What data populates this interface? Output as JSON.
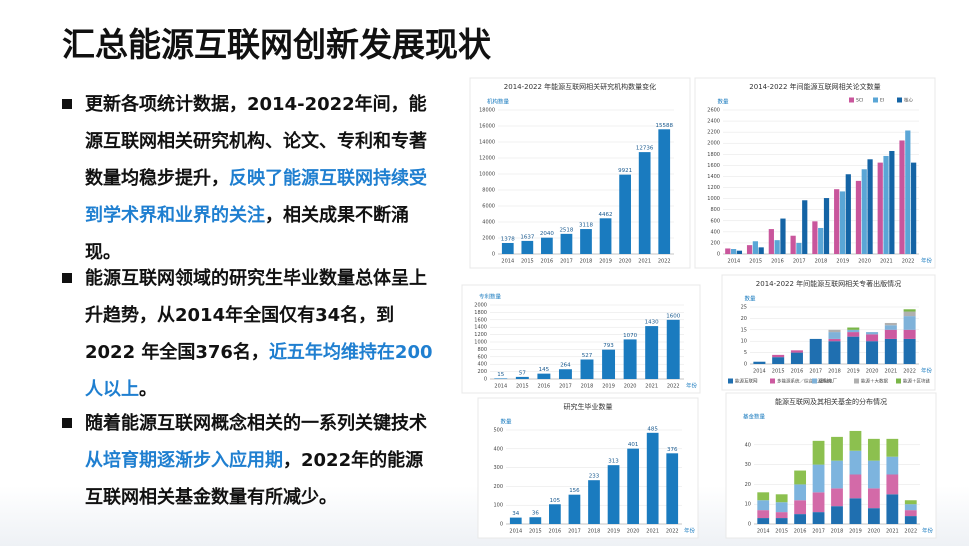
{
  "slide": {
    "title": "汇总能源互联网创新发展现状",
    "bullets": [
      {
        "before": "更新各项统计数据，2014-2022年间，能源互联网相关研究机构、论文、专利和专著数量均稳步提升，",
        "highlight": "反映了能源互联网持续受到学术界和业界的关注",
        "after": "，相关成果不断涌现。"
      },
      {
        "before": "能源互联网领域的研究生毕业数量总体呈上升趋势，从2014年全国仅有34名，到2022 年全国376名，",
        "highlight": "近五年均维持在200人以上",
        "after": "。"
      },
      {
        "before": "随着能源互联网概念相关的一系列关键技术",
        "highlight": "从培育期逐渐步入应用期",
        "after": "，2022年的能源互联网相关基金数量有所减少。"
      }
    ]
  },
  "chart_data": [
    {
      "type": "bar",
      "title": "2014-2022 年能源互联网相关研究机构数量变化",
      "ylabel": "机构数量",
      "categories": [
        "2014",
        "2015",
        "2016",
        "2017",
        "2018",
        "2019",
        "2020",
        "2021",
        "2022"
      ],
      "values": [
        1378,
        1637,
        2040,
        2518,
        3118,
        4462,
        9921,
        12736,
        15588
      ],
      "color": "#1a7bbf",
      "ylim": [
        0,
        18000
      ],
      "yticks": [
        0,
        2000,
        4000,
        6000,
        8000,
        10000,
        12000,
        14000,
        16000,
        18000
      ],
      "grid": true
    },
    {
      "type": "bar",
      "title": "2014-2022 年间能源互联网相关论文数量",
      "ylabel": "数量",
      "xlabel": "年份",
      "categories": [
        "2014",
        "2015",
        "2016",
        "2017",
        "2018",
        "2019",
        "2020",
        "2021",
        "2022"
      ],
      "legend": "top-right",
      "series": [
        {
          "name": "SCI",
          "color": "#c9569c",
          "values": [
            100,
            160,
            450,
            330,
            590,
            1170,
            1320,
            1650,
            2050
          ]
        },
        {
          "name": "EI",
          "color": "#5aa6d6",
          "values": [
            90,
            230,
            250,
            200,
            470,
            1130,
            1530,
            1770,
            2230
          ]
        },
        {
          "name": "核心",
          "color": "#1464a5",
          "values": [
            60,
            120,
            640,
            970,
            1010,
            1440,
            1710,
            1860,
            1650
          ]
        }
      ],
      "ylim": [
        0,
        2600
      ],
      "yticks": [
        0,
        200,
        400,
        600,
        800,
        1000,
        1200,
        1400,
        1600,
        1800,
        2000,
        2200,
        2400,
        2600
      ],
      "grid": true
    },
    {
      "type": "bar",
      "ylabel": "专利数量",
      "xlabel": "年份",
      "categories": [
        "2014",
        "2015",
        "2016",
        "2017",
        "2018",
        "2019",
        "2020",
        "2021",
        "2022"
      ],
      "values": [
        15,
        57,
        145,
        264,
        527,
        793,
        1070,
        1430,
        1600
      ],
      "color": "#1a7bbf",
      "ylim": [
        0,
        2000
      ],
      "yticks": [
        0,
        200,
        400,
        600,
        800,
        1000,
        1200,
        1400,
        1600,
        1800,
        2000
      ],
      "grid": true
    },
    {
      "type": "stacked-bar",
      "title": "2014-2022 年间能源互联网相关专著出版情况",
      "ylabel": "数量",
      "xlabel": "年份",
      "categories": [
        "2014",
        "2015",
        "2016",
        "2017",
        "2018",
        "2019",
        "2020",
        "2021",
        "2022"
      ],
      "legend": "bottom",
      "series": [
        {
          "name": "能源互联网",
          "color": "#1f6fb0",
          "values": [
            1,
            3,
            5,
            11,
            10,
            12,
            10,
            11,
            11
          ]
        },
        {
          "name": "多能源系统／综合能源系统",
          "color": "#cc5aa0",
          "values": [
            0,
            1,
            1,
            0,
            1,
            2,
            3,
            4,
            4
          ]
        },
        {
          "name": "虚拟电厂",
          "color": "#7fb2d9",
          "values": [
            0,
            0,
            0,
            0,
            3,
            1,
            1,
            2,
            6
          ]
        },
        {
          "name": "能源＋大数据",
          "color": "#b0b0b0",
          "values": [
            0,
            0,
            0,
            0,
            1,
            0,
            0,
            1,
            2
          ]
        },
        {
          "name": "能源＋区块链",
          "color": "#7ab648",
          "values": [
            0,
            0,
            0,
            0,
            0,
            1,
            0,
            0,
            1
          ]
        }
      ],
      "ylim": [
        0,
        25
      ],
      "yticks": [
        0,
        5,
        10,
        15,
        20,
        25
      ],
      "grid": true
    },
    {
      "type": "bar",
      "title": "研究生毕业数量",
      "ylabel": "数量",
      "xlabel": "年份",
      "categories": [
        "2014",
        "2015",
        "2016",
        "2017",
        "2018",
        "2019",
        "2020",
        "2021",
        "2022"
      ],
      "values": [
        34,
        36,
        105,
        156,
        233,
        313,
        401,
        485,
        376
      ],
      "color": "#1a7bbf",
      "ylim": [
        0,
        500
      ],
      "yticks": [
        0,
        100,
        200,
        300,
        400,
        500
      ],
      "grid": true
    },
    {
      "type": "stacked-bar",
      "title": "能源互联网及其相关基金的分布情况",
      "ylabel": "基金数量",
      "xlabel": "年份",
      "categories": [
        "2014",
        "2015",
        "2016",
        "2017",
        "2018",
        "2019",
        "2020",
        "2021",
        "2022"
      ],
      "series": [
        {
          "color": "#1f6fb0",
          "values": [
            3,
            3,
            5,
            6,
            9,
            13,
            8,
            15,
            4
          ]
        },
        {
          "color": "#d36aa8",
          "values": [
            4,
            3,
            7,
            10,
            9,
            12,
            10,
            10,
            3
          ]
        },
        {
          "color": "#7db4de",
          "values": [
            5,
            5,
            8,
            14,
            14,
            12,
            14,
            9,
            3
          ]
        },
        {
          "color": "#8cc04f",
          "values": [
            4,
            4,
            7,
            12,
            12,
            10,
            11,
            9,
            2
          ]
        }
      ],
      "ylim": [
        0,
        50
      ],
      "yticks": [
        0,
        10,
        20,
        30,
        40
      ],
      "grid": true
    }
  ]
}
